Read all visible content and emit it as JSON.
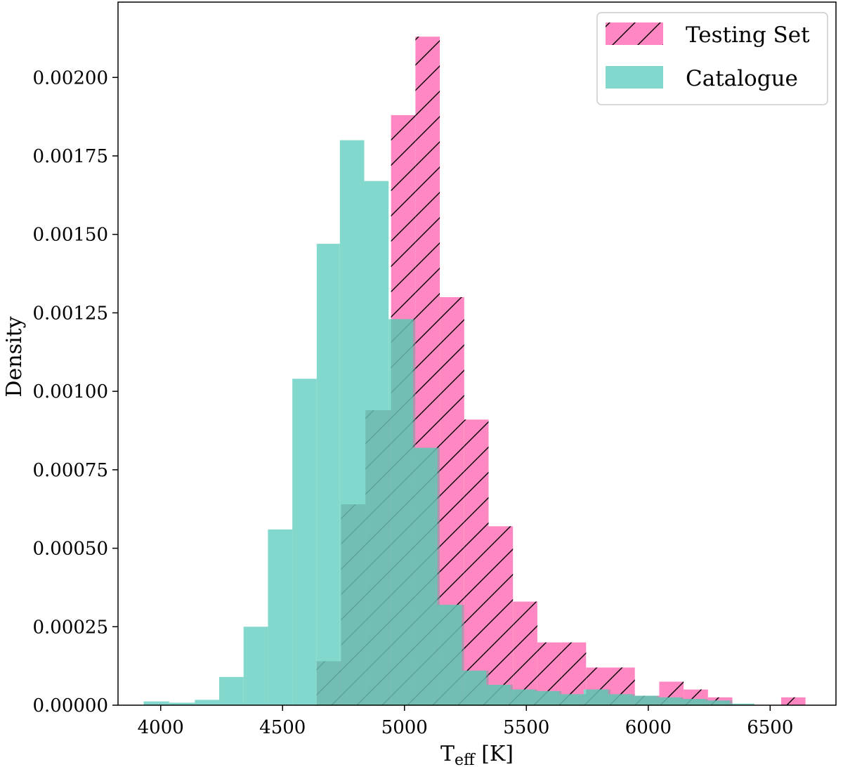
{
  "chart_data": {
    "type": "bar",
    "xlabel": "T",
    "xlabel_sub": "eff",
    "xlabel_unit": " [K]",
    "ylabel": "Density",
    "xlim": [
      3825,
      6770
    ],
    "ylim": [
      0,
      0.00224
    ],
    "x_ticks": [
      4000,
      4500,
      5000,
      5500,
      6000,
      6500
    ],
    "y_ticks": [
      0,
      0.00025,
      0.0005,
      0.00075,
      0.001,
      0.00125,
      0.0015,
      0.00175,
      0.002
    ],
    "y_tick_labels": [
      "0.00000",
      "0.00025",
      "0.00050",
      "0.00075",
      "0.00100",
      "0.00125",
      "0.00150",
      "0.00175",
      "0.00200"
    ],
    "x_tick_labels": [
      "4000",
      "4500",
      "5000",
      "5500",
      "6000",
      "6500"
    ],
    "legend_position": "upper right",
    "series": [
      {
        "name": "Testing Set",
        "color": "#ff88c2",
        "hatch": "/",
        "bins": [
          [
            4640,
            4740,
            0.00014
          ],
          [
            4740,
            4840,
            0.00064
          ],
          [
            4840,
            4945,
            0.00094
          ],
          [
            4945,
            5045,
            0.00188
          ],
          [
            5045,
            5145,
            0.00213
          ],
          [
            5145,
            5245,
            0.0013
          ],
          [
            5245,
            5345,
            0.00091
          ],
          [
            5345,
            5445,
            0.00057
          ],
          [
            5445,
            5545,
            0.00033
          ],
          [
            5545,
            5645,
            0.0002
          ],
          [
            5645,
            5745,
            0.0002
          ],
          [
            5745,
            5845,
            0.00012
          ],
          [
            5845,
            5945,
            0.00012
          ],
          [
            5945,
            6045,
            3e-05
          ],
          [
            6045,
            6145,
            7.5e-05
          ],
          [
            6145,
            6245,
            5e-05
          ],
          [
            6245,
            6345,
            2.5e-05
          ],
          [
            6345,
            6445,
            0.0
          ],
          [
            6445,
            6545,
            0.0
          ],
          [
            6545,
            6645,
            2.5e-05
          ]
        ]
      },
      {
        "name": "Catalogue",
        "color": "#82d8cc",
        "bins": [
          [
            3930,
            4035,
            1.2e-05
          ],
          [
            4035,
            4140,
            8e-06
          ],
          [
            4140,
            4240,
            1.7e-05
          ],
          [
            4240,
            4340,
            9e-05
          ],
          [
            4340,
            4440,
            0.00025
          ],
          [
            4440,
            4540,
            0.00056
          ],
          [
            4540,
            4640,
            0.00104
          ],
          [
            4640,
            4735,
            0.00147
          ],
          [
            4735,
            4835,
            0.0018
          ],
          [
            4835,
            4935,
            0.00167
          ],
          [
            4935,
            5035,
            0.00123
          ],
          [
            5035,
            5135,
            0.00082
          ],
          [
            5135,
            5235,
            0.00032
          ],
          [
            5235,
            5335,
            0.00011
          ],
          [
            5335,
            5435,
            6.5e-05
          ],
          [
            5435,
            5535,
            5e-05
          ],
          [
            5535,
            5635,
            4.5e-05
          ],
          [
            5635,
            5735,
            3.5e-05
          ],
          [
            5735,
            5835,
            5e-05
          ],
          [
            5835,
            5935,
            3.5e-05
          ],
          [
            5935,
            6035,
            3e-05
          ],
          [
            6035,
            6135,
            2.5e-05
          ],
          [
            6135,
            6235,
            2e-05
          ],
          [
            6235,
            6335,
            1.5e-05
          ],
          [
            6335,
            6435,
            5e-06
          ]
        ]
      }
    ]
  }
}
